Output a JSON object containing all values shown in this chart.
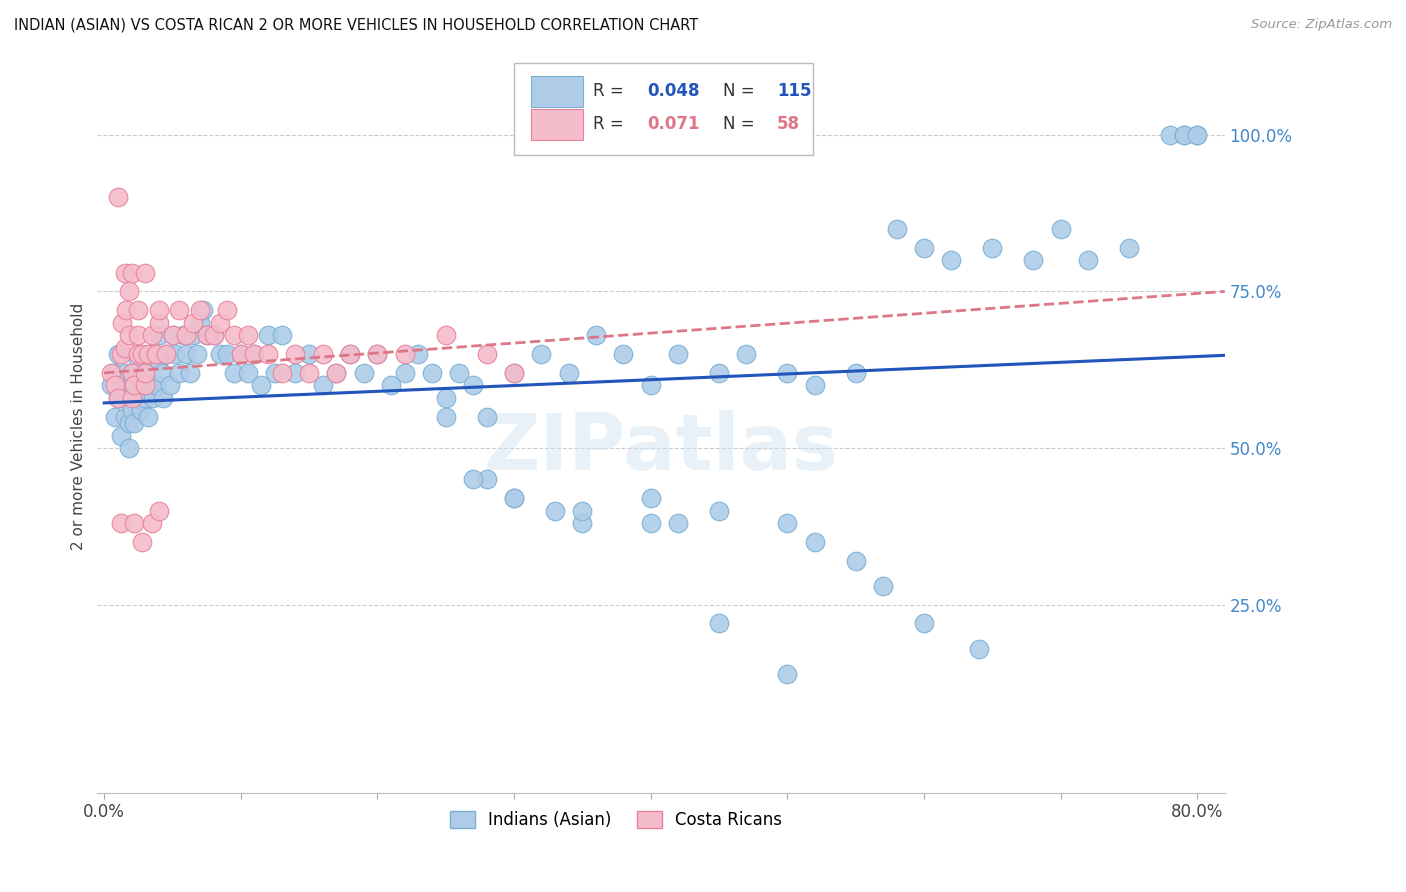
{
  "title": "INDIAN (ASIAN) VS COSTA RICAN 2 OR MORE VEHICLES IN HOUSEHOLD CORRELATION CHART",
  "source": "Source: ZipAtlas.com",
  "ylabel": "2 or more Vehicles in Household",
  "xlim": [
    -0.005,
    0.82
  ],
  "ylim": [
    -0.05,
    1.12
  ],
  "blue_color": "#aecce8",
  "blue_edge_color": "#7aafd4",
  "pink_color": "#f5bccb",
  "pink_edge_color": "#e8809a",
  "trend_blue_color": "#2255bb",
  "trend_pink_color": "#dd7788",
  "grid_color": "#cccccc",
  "right_tick_color": "#4488cc",
  "title_color": "#111111",
  "watermark": "ZIPatlas",
  "legend_R_blue": "0.048",
  "legend_N_blue": "115",
  "legend_R_pink": "0.071",
  "legend_N_pink": "58",
  "blue_x": [
    0.005,
    0.007,
    0.008,
    0.01,
    0.01,
    0.012,
    0.013,
    0.015,
    0.015,
    0.016,
    0.018,
    0.018,
    0.02,
    0.02,
    0.02,
    0.022,
    0.022,
    0.023,
    0.025,
    0.025,
    0.027,
    0.028,
    0.03,
    0.03,
    0.032,
    0.033,
    0.035,
    0.036,
    0.038,
    0.04,
    0.04,
    0.042,
    0.043,
    0.045,
    0.048,
    0.05,
    0.052,
    0.055,
    0.058,
    0.06,
    0.063,
    0.065,
    0.068,
    0.07,
    0.072,
    0.075,
    0.08,
    0.085,
    0.09,
    0.095,
    0.1,
    0.105,
    0.11,
    0.115,
    0.12,
    0.125,
    0.13,
    0.14,
    0.15,
    0.16,
    0.17,
    0.18,
    0.19,
    0.2,
    0.21,
    0.22,
    0.23,
    0.24,
    0.25,
    0.26,
    0.27,
    0.28,
    0.3,
    0.32,
    0.34,
    0.36,
    0.38,
    0.4,
    0.42,
    0.45,
    0.47,
    0.5,
    0.52,
    0.55,
    0.58,
    0.6,
    0.62,
    0.65,
    0.68,
    0.7,
    0.72,
    0.75,
    0.28,
    0.3,
    0.33,
    0.35,
    0.4,
    0.42,
    0.45,
    0.5,
    0.52,
    0.55,
    0.57,
    0.6,
    0.64,
    0.78,
    0.79,
    0.8,
    0.79,
    0.8,
    0.25,
    0.27,
    0.3,
    0.35,
    0.4,
    0.45,
    0.5
  ],
  "blue_y": [
    0.6,
    0.62,
    0.55,
    0.58,
    0.65,
    0.52,
    0.6,
    0.55,
    0.62,
    0.58,
    0.5,
    0.54,
    0.62,
    0.56,
    0.6,
    0.58,
    0.54,
    0.62,
    0.58,
    0.64,
    0.56,
    0.6,
    0.58,
    0.62,
    0.55,
    0.6,
    0.65,
    0.58,
    0.6,
    0.64,
    0.68,
    0.62,
    0.58,
    0.65,
    0.6,
    0.68,
    0.65,
    0.62,
    0.68,
    0.65,
    0.62,
    0.68,
    0.65,
    0.7,
    0.72,
    0.68,
    0.68,
    0.65,
    0.65,
    0.62,
    0.65,
    0.62,
    0.65,
    0.6,
    0.68,
    0.62,
    0.68,
    0.62,
    0.65,
    0.6,
    0.62,
    0.65,
    0.62,
    0.65,
    0.6,
    0.62,
    0.65,
    0.62,
    0.58,
    0.62,
    0.6,
    0.55,
    0.62,
    0.65,
    0.62,
    0.68,
    0.65,
    0.6,
    0.65,
    0.62,
    0.65,
    0.62,
    0.6,
    0.62,
    0.85,
    0.82,
    0.8,
    0.82,
    0.8,
    0.85,
    0.8,
    0.82,
    0.45,
    0.42,
    0.4,
    0.38,
    0.42,
    0.38,
    0.4,
    0.38,
    0.35,
    0.32,
    0.28,
    0.22,
    0.18,
    1.0,
    1.0,
    1.0,
    1.0,
    1.0,
    0.55,
    0.45,
    0.42,
    0.4,
    0.38,
    0.22,
    0.14
  ],
  "pink_x": [
    0.005,
    0.008,
    0.01,
    0.012,
    0.013,
    0.015,
    0.016,
    0.018,
    0.02,
    0.02,
    0.022,
    0.025,
    0.025,
    0.028,
    0.03,
    0.03,
    0.032,
    0.035,
    0.038,
    0.04,
    0.04,
    0.045,
    0.05,
    0.055,
    0.06,
    0.065,
    0.07,
    0.075,
    0.08,
    0.085,
    0.09,
    0.095,
    0.1,
    0.105,
    0.11,
    0.12,
    0.13,
    0.14,
    0.15,
    0.16,
    0.17,
    0.18,
    0.2,
    0.22,
    0.25,
    0.28,
    0.3,
    0.01,
    0.015,
    0.018,
    0.02,
    0.025,
    0.03,
    0.012,
    0.022,
    0.028,
    0.035,
    0.04
  ],
  "pink_y": [
    0.62,
    0.6,
    0.58,
    0.65,
    0.7,
    0.66,
    0.72,
    0.68,
    0.58,
    0.62,
    0.6,
    0.65,
    0.68,
    0.65,
    0.6,
    0.62,
    0.65,
    0.68,
    0.65,
    0.7,
    0.72,
    0.65,
    0.68,
    0.72,
    0.68,
    0.7,
    0.72,
    0.68,
    0.68,
    0.7,
    0.72,
    0.68,
    0.65,
    0.68,
    0.65,
    0.65,
    0.62,
    0.65,
    0.62,
    0.65,
    0.62,
    0.65,
    0.65,
    0.65,
    0.68,
    0.65,
    0.62,
    0.9,
    0.78,
    0.75,
    0.78,
    0.72,
    0.78,
    0.38,
    0.38,
    0.35,
    0.38,
    0.4
  ]
}
